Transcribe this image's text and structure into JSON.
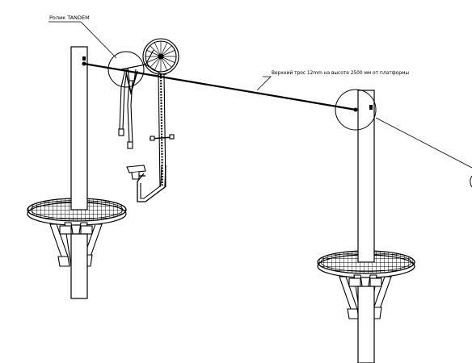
{
  "labels": {
    "roller": "Ролик TANDEM",
    "cable": "Верхний трос 12mm на высоте 2500 мм от платформы"
  }
}
